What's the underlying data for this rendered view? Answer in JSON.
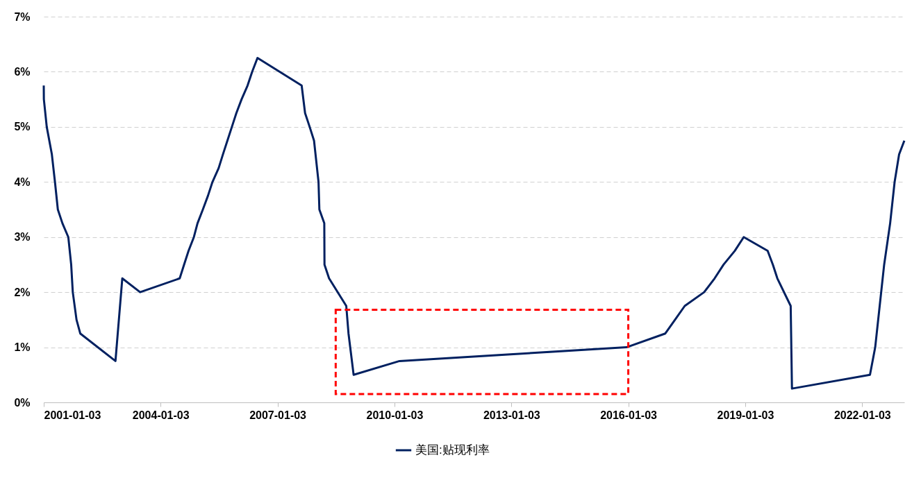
{
  "chart_data": {
    "type": "line",
    "x": [
      "2001-01-03",
      "2001-01-04",
      "2001-01-31",
      "2001-03-20",
      "2001-04-18",
      "2001-05-15",
      "2001-06-27",
      "2001-08-21",
      "2001-09-17",
      "2001-10-02",
      "2001-11-06",
      "2001-12-11",
      "2002-11-06",
      "2003-01-09",
      "2003-06-25",
      "2004-06-30",
      "2004-08-10",
      "2004-09-21",
      "2004-11-10",
      "2004-12-14",
      "2005-02-02",
      "2005-03-22",
      "2005-05-03",
      "2005-06-30",
      "2005-08-09",
      "2005-09-20",
      "2005-11-01",
      "2005-12-13",
      "2006-01-31",
      "2006-03-28",
      "2006-05-10",
      "2006-06-29",
      "2007-08-17",
      "2007-09-18",
      "2007-10-31",
      "2007-12-11",
      "2008-01-22",
      "2008-01-30",
      "2008-03-16",
      "2008-03-18",
      "2008-04-30",
      "2008-10-08",
      "2008-10-29",
      "2008-12-16",
      "2010-02-19",
      "2015-12-17",
      "2016-12-15",
      "2017-03-16",
      "2017-06-15",
      "2017-12-14",
      "2018-03-22",
      "2018-06-14",
      "2018-09-27",
      "2018-12-20",
      "2019-08-01",
      "2019-09-19",
      "2019-10-31",
      "2020-03-04",
      "2020-03-16",
      "2022-03-17",
      "2022-05-05",
      "2022-06-16",
      "2022-07-28",
      "2022-09-22",
      "2022-11-03",
      "2022-12-15",
      "2023-02-02"
    ],
    "series": [
      {
        "name": "美国:贴现利率",
        "color": "#002060",
        "values": [
          5.75,
          5.5,
          5.0,
          4.5,
          4.0,
          3.5,
          3.25,
          3.0,
          2.5,
          2.0,
          1.5,
          1.25,
          0.75,
          2.25,
          2.0,
          2.25,
          2.5,
          2.75,
          3.0,
          3.25,
          3.5,
          3.75,
          4.0,
          4.25,
          4.5,
          4.75,
          5.0,
          5.25,
          5.5,
          5.75,
          6.0,
          6.25,
          5.75,
          5.25,
          5.0,
          4.75,
          4.0,
          3.5,
          3.25,
          2.5,
          2.25,
          1.75,
          1.25,
          0.5,
          0.75,
          1.0,
          1.25,
          1.5,
          1.75,
          2.0,
          2.25,
          2.5,
          2.75,
          3.0,
          2.75,
          2.5,
          2.25,
          1.75,
          0.25,
          0.5,
          1.0,
          1.75,
          2.5,
          3.25,
          4.0,
          4.5,
          4.75
        ]
      }
    ],
    "xlim": [
      "2001-01-03",
      "2023-02-02"
    ],
    "xticks": [
      "2001-01-03",
      "2004-01-03",
      "2007-01-03",
      "2010-01-03",
      "2013-01-03",
      "2016-01-03",
      "2019-01-03",
      "2022-01-03"
    ],
    "ylim": [
      0,
      7
    ],
    "yticks": [
      {
        "value": 0,
        "label": "0%"
      },
      {
        "value": 1,
        "label": "1%"
      },
      {
        "value": 2,
        "label": "2%"
      },
      {
        "value": 3,
        "label": "3%"
      },
      {
        "value": 4,
        "label": "4%"
      },
      {
        "value": 5,
        "label": "5%"
      },
      {
        "value": 6,
        "label": "6%"
      },
      {
        "value": 7,
        "label": "7%"
      }
    ],
    "grid": "y",
    "legend": "bottom",
    "marker": "none",
    "line_style": "solid"
  }
}
